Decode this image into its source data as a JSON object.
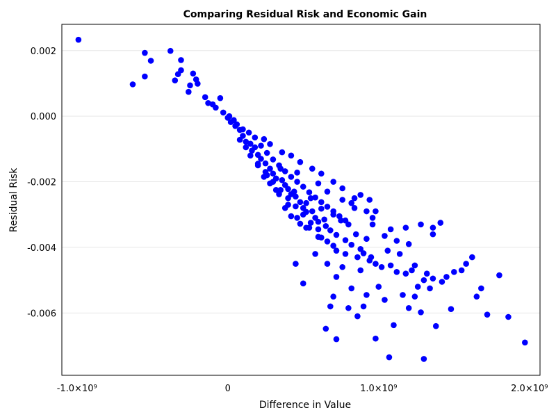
{
  "chart_data": {
    "type": "scatter",
    "title": "Comparing Residual Risk and Economic Gain",
    "xlabel": "Difference in Value",
    "ylabel": "Residual Risk",
    "xlim": [
      -1100000000.0,
      2070000000.0
    ],
    "ylim": [
      -0.0079,
      0.0028
    ],
    "grid": {
      "x": false,
      "y": true
    },
    "color": "#0000ff",
    "x_ticks": [
      {
        "value": -1000000000.0,
        "label": "-1.0×10⁹"
      },
      {
        "value": 0,
        "label": "0"
      },
      {
        "value": 1000000000.0,
        "label": "1.0×10⁹"
      },
      {
        "value": 2000000000.0,
        "label": "2.0×10⁹"
      }
    ],
    "y_ticks": [
      {
        "value": 0.002,
        "label": "0.002"
      },
      {
        "value": 0.0,
        "label": "0.000"
      },
      {
        "value": -0.002,
        "label": "-0.002"
      },
      {
        "value": -0.004,
        "label": "-0.004"
      },
      {
        "value": -0.006,
        "label": "-0.006"
      }
    ],
    "points": [
      [
        -990000000.0,
        0.00233
      ],
      [
        -630000000.0,
        0.00097
      ],
      [
        -550000000.0,
        0.00193
      ],
      [
        -550000000.0,
        0.00121
      ],
      [
        -510000000.0,
        0.00169
      ],
      [
        -380000000.0,
        0.00199
      ],
      [
        -310000000.0,
        0.00171
      ],
      [
        -310000000.0,
        0.0014
      ],
      [
        -330000000.0,
        0.00128
      ],
      [
        -350000000.0,
        0.00109
      ],
      [
        -230000000.0,
        0.0013
      ],
      [
        -210000000.0,
        0.00112
      ],
      [
        -200000000.0,
        0.00099
      ],
      [
        -250000000.0,
        0.00094
      ],
      [
        -260000000.0,
        0.00074
      ],
      [
        -150000000.0,
        0.00058
      ],
      [
        -130000000.0,
        0.0004
      ],
      [
        -100000000.0,
        0.00036
      ],
      [
        -80000000.0,
        0.00026
      ],
      [
        -50000000.0,
        0.00055
      ],
      [
        -30000000.0,
        0.00011
      ],
      [
        0.0,
        -5e-05
      ],
      [
        20000000.0,
        -0.00018
      ],
      [
        50000000.0,
        -0.0003
      ],
      [
        80000000.0,
        -0.00042
      ],
      [
        100000000.0,
        -0.0006
      ],
      [
        120000000.0,
        -0.00078
      ],
      [
        150000000.0,
        -0.00084
      ],
      [
        180000000.0,
        -0.00095
      ],
      [
        200000000.0,
        -0.00118
      ],
      [
        220000000.0,
        -0.0013
      ],
      [
        250000000.0,
        -0.00144
      ],
      [
        280000000.0,
        -0.0016
      ],
      [
        300000000.0,
        -0.00175
      ],
      [
        320000000.0,
        -0.0019
      ],
      [
        350000000.0,
        -0.0016
      ],
      [
        380000000.0,
        -0.0021
      ],
      [
        400000000.0,
        -0.00222
      ],
      [
        420000000.0,
        -0.00238
      ],
      [
        450000000.0,
        -0.00245
      ],
      [
        480000000.0,
        -0.00262
      ],
      [
        500000000.0,
        -0.0028
      ],
      [
        520000000.0,
        -0.00292
      ],
      [
        550000000.0,
        -0.0025
      ],
      [
        580000000.0,
        -0.0031
      ],
      [
        600000000.0,
        -0.00322
      ],
      [
        620000000.0,
        -0.00282
      ],
      [
        650000000.0,
        -0.00335
      ],
      [
        680000000.0,
        -0.00348
      ],
      [
        700000000.0,
        -0.003
      ],
      [
        720000000.0,
        -0.00362
      ],
      [
        750000000.0,
        -0.00318
      ],
      [
        780000000.0,
        -0.00378
      ],
      [
        800000000.0,
        -0.0033
      ],
      [
        820000000.0,
        -0.00392
      ],
      [
        850000000.0,
        -0.0036
      ],
      [
        880000000.0,
        -0.00405
      ],
      [
        900000000.0,
        -0.00418
      ],
      [
        920000000.0,
        -0.00374
      ],
      [
        950000000.0,
        -0.0043
      ],
      [
        220000000.0,
        -0.0009
      ],
      [
        260000000.0,
        -0.00112
      ],
      [
        300000000.0,
        -0.00132
      ],
      [
        340000000.0,
        -0.0015
      ],
      [
        380000000.0,
        -0.00168
      ],
      [
        420000000.0,
        -0.00185
      ],
      [
        460000000.0,
        -0.002
      ],
      [
        500000000.0,
        -0.00215
      ],
      [
        540000000.0,
        -0.00232
      ],
      [
        580000000.0,
        -0.00248
      ],
      [
        620000000.0,
        -0.00262
      ],
      [
        660000000.0,
        -0.00276
      ],
      [
        700000000.0,
        -0.0029
      ],
      [
        740000000.0,
        -0.00305
      ],
      [
        780000000.0,
        -0.00318
      ],
      [
        150000000.0,
        -0.0012
      ],
      [
        200000000.0,
        -0.00145
      ],
      [
        250000000.0,
        -0.0017
      ],
      [
        300000000.0,
        -0.002
      ],
      [
        350000000.0,
        -0.00225
      ],
      [
        400000000.0,
        -0.0025
      ],
      [
        450000000.0,
        -0.00275
      ],
      [
        500000000.0,
        -0.003
      ],
      [
        550000000.0,
        -0.00325
      ],
      [
        600000000.0,
        -0.00345
      ],
      [
        360000000.0,
        -0.00195
      ],
      [
        440000000.0,
        -0.0023
      ],
      [
        520000000.0,
        -0.00265
      ],
      [
        560000000.0,
        -0.0029
      ],
      [
        640000000.0,
        -0.00315
      ],
      [
        400000000.0,
        -0.0027
      ],
      [
        460000000.0,
        -0.0031
      ],
      [
        540000000.0,
        -0.0034
      ],
      [
        620000000.0,
        -0.0037
      ],
      [
        700000000.0,
        -0.00395
      ],
      [
        320000000.0,
        -0.00225
      ],
      [
        280000000.0,
        -0.00205
      ],
      [
        240000000.0,
        -0.00185
      ],
      [
        460000000.0,
        -0.00172
      ],
      [
        600000000.0,
        -0.00205
      ],
      [
        660000000.0,
        -0.0023
      ],
      [
        760000000.0,
        -0.00255
      ],
      [
        840000000.0,
        -0.0028
      ],
      [
        960000000.0,
        -0.0033
      ],
      [
        1040000000.0,
        -0.00365
      ],
      [
        1060000000.0,
        -0.0041
      ],
      [
        1080000000.0,
        -0.00455
      ],
      [
        1140000000.0,
        -0.0042
      ],
      [
        1180000000.0,
        -0.0048
      ],
      [
        1220000000.0,
        -0.0047
      ],
      [
        1260000000.0,
        -0.0052
      ],
      [
        1300000000.0,
        -0.005
      ],
      [
        1340000000.0,
        -0.00525
      ],
      [
        1360000000.0,
        -0.00495
      ],
      [
        1420000000.0,
        -0.00505
      ],
      [
        1450000000.0,
        -0.0049
      ],
      [
        1500000000.0,
        -0.00475
      ],
      [
        1550000000.0,
        -0.0047
      ],
      [
        1580000000.0,
        -0.0045
      ],
      [
        1620000000.0,
        -0.0043
      ],
      [
        1650000000.0,
        -0.0055
      ],
      [
        1680000000.0,
        -0.00525
      ],
      [
        1720000000.0,
        -0.00605
      ],
      [
        1800000000.0,
        -0.00485
      ],
      [
        1860000000.0,
        -0.00612
      ],
      [
        1970000000.0,
        -0.0069
      ],
      [
        1300000000.0,
        -0.0074
      ],
      [
        1070000000.0,
        -0.00735
      ],
      [
        720000000.0,
        -0.0068
      ],
      [
        650000000.0,
        -0.00648
      ],
      [
        980000000.0,
        -0.00678
      ],
      [
        1100000000.0,
        -0.00637
      ],
      [
        1280000000.0,
        -0.00598
      ],
      [
        1380000000.0,
        -0.0064
      ],
      [
        1480000000.0,
        -0.00588
      ],
      [
        1200000000.0,
        -0.00585
      ],
      [
        900000000.0,
        -0.0058
      ],
      [
        800000000.0,
        -0.00585
      ],
      [
        700000000.0,
        -0.0055
      ],
      [
        680000000.0,
        -0.0058
      ],
      [
        500000000.0,
        -0.0051
      ],
      [
        720000000.0,
        -0.0049
      ],
      [
        820000000.0,
        -0.00525
      ],
      [
        920000000.0,
        -0.00545
      ],
      [
        860000000.0,
        -0.0061
      ],
      [
        1000000000.0,
        -0.0052
      ],
      [
        1040000000.0,
        -0.0056
      ],
      [
        1160000000.0,
        -0.00545
      ],
      [
        1240000000.0,
        -0.0055
      ],
      [
        450000000.0,
        -0.0045
      ],
      [
        580000000.0,
        -0.0042
      ],
      [
        660000000.0,
        -0.0045
      ],
      [
        760000000.0,
        -0.0046
      ],
      [
        880000000.0,
        -0.0047
      ],
      [
        980000000.0,
        -0.0045
      ],
      [
        1120000000.0,
        -0.0038
      ],
      [
        1180000000.0,
        -0.0034
      ],
      [
        1280000000.0,
        -0.0033
      ],
      [
        1360000000.0,
        -0.0034
      ],
      [
        1410000000.0,
        -0.00325
      ],
      [
        1360000000.0,
        -0.0036
      ],
      [
        1200000000.0,
        -0.0039
      ],
      [
        1080000000.0,
        -0.00345
      ],
      [
        960000000.0,
        -0.0031
      ],
      [
        920000000.0,
        -0.0029
      ],
      [
        820000000.0,
        -0.00265
      ],
      [
        880000000.0,
        -0.0024
      ],
      [
        940000000.0,
        -0.00255
      ],
      [
        980000000.0,
        -0.0029
      ],
      [
        840000000.0,
        -0.0025
      ],
      [
        760000000.0,
        -0.0022
      ],
      [
        700000000.0,
        -0.002
      ],
      [
        620000000.0,
        -0.00175
      ],
      [
        560000000.0,
        -0.0016
      ],
      [
        480000000.0,
        -0.0014
      ],
      [
        420000000.0,
        -0.0012
      ],
      [
        360000000.0,
        -0.0011
      ],
      [
        280000000.0,
        -0.00085
      ],
      [
        240000000.0,
        -0.0007
      ],
      [
        180000000.0,
        -0.00065
      ],
      [
        140000000.0,
        -0.0005
      ],
      [
        100000000.0,
        -0.0004
      ],
      [
        60000000.0,
        -0.00025
      ],
      [
        40000000.0,
        -0.00012
      ],
      [
        10000000.0,
        0.0
      ],
      [
        120000000.0,
        -0.00095
      ],
      [
        160000000.0,
        -0.00105
      ],
      [
        80000000.0,
        -0.00072
      ],
      [
        200000000.0,
        -0.0015
      ],
      [
        260000000.0,
        -0.0018
      ],
      [
        340000000.0,
        -0.00238
      ],
      [
        380000000.0,
        -0.0028
      ],
      [
        420000000.0,
        -0.00305
      ],
      [
        480000000.0,
        -0.00328
      ],
      [
        520000000.0,
        -0.0034
      ],
      [
        600000000.0,
        -0.00368
      ],
      [
        660000000.0,
        -0.00382
      ],
      [
        720000000.0,
        -0.0041
      ],
      [
        780000000.0,
        -0.0042
      ],
      [
        860000000.0,
        -0.0043
      ],
      [
        940000000.0,
        -0.0044
      ],
      [
        1020000000.0,
        -0.0046
      ],
      [
        1120000000.0,
        -0.00475
      ],
      [
        1240000000.0,
        -0.00455
      ],
      [
        1320000000.0,
        -0.0048
      ]
    ]
  }
}
